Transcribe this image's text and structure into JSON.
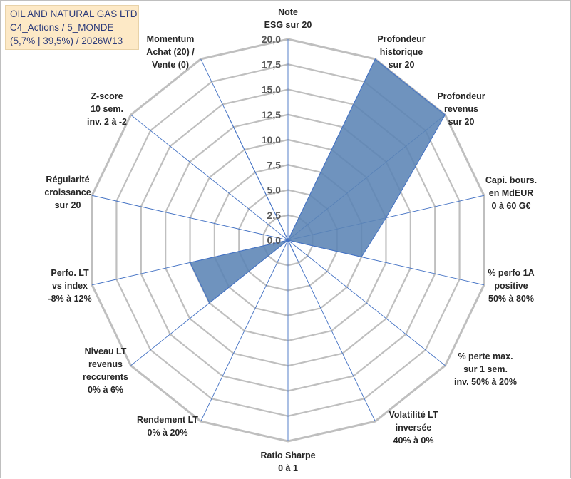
{
  "header": {
    "title_line1": "OIL AND NATURAL GAS LTD",
    "title_line2": "C4_Actions / 5_MONDE",
    "title_line3": "(5,7% | 39,5%) / 2026W13"
  },
  "chart_data": {
    "type": "radar",
    "scale": {
      "min": 0,
      "max": 20,
      "step": 2.5
    },
    "tick_labels": [
      "0,0",
      "2,5",
      "5,0",
      "7,5",
      "10,0",
      "12,5",
      "15,0",
      "17,5",
      "20,0"
    ],
    "categories": [
      [
        "Note",
        "ESG sur 20"
      ],
      [
        "Profondeur",
        "historique",
        "sur 20"
      ],
      [
        "Profondeur",
        "revenus",
        "sur 20"
      ],
      [
        "Capi. bours.",
        "en MdEUR",
        "0 à 60 G€"
      ],
      [
        "% perfo 1A",
        "positive",
        "50% à 80%"
      ],
      [
        "% perte max.",
        "sur 1 sem.",
        "inv. 50% à 20%"
      ],
      [
        "Volatilité LT",
        "inversée",
        "40% à 0%"
      ],
      [
        "Ratio Sharpe",
        "0 à 1"
      ],
      [
        "Rendement LT",
        "0% à 20%"
      ],
      [
        "Niveau LT",
        "revenus",
        "reccurents",
        "0% à 6%"
      ],
      [
        "Perfo. LT",
        "vs index",
        "-8% à 12%"
      ],
      [
        "Régularité",
        "croissance",
        "sur 20"
      ],
      [
        "Z-score",
        "10 sem.",
        "inv. 2 à -2"
      ],
      [
        "Momentum",
        "Achat (20) /",
        "Vente (0)"
      ]
    ],
    "series": [
      {
        "values": [
          0,
          20,
          20,
          10,
          7.5,
          0,
          2,
          0,
          0,
          10,
          10,
          0,
          0,
          14
        ]
      }
    ],
    "colors": {
      "fill": "#5b84b5",
      "stroke": "#4472c4",
      "grid": "#bfbfbf",
      "spoke": "#4472c4"
    }
  }
}
